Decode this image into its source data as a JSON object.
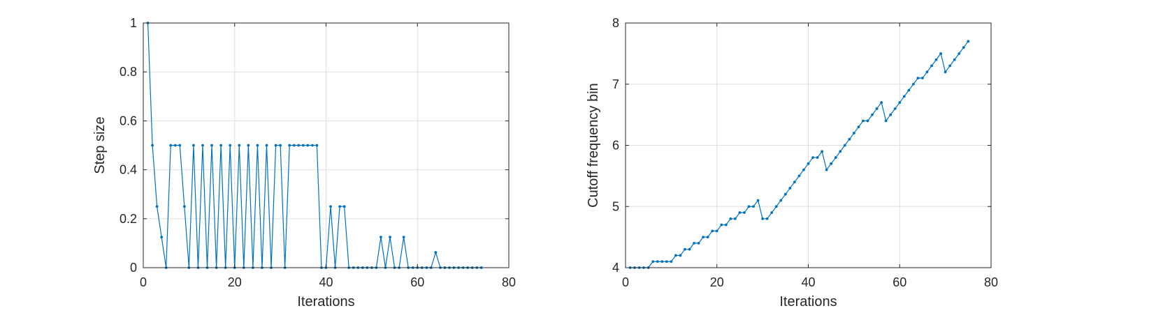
{
  "chart_data": [
    {
      "type": "line",
      "title": "",
      "xlabel": "Iterations",
      "ylabel": "Step size",
      "xlim": [
        0,
        80
      ],
      "ylim": [
        0,
        1
      ],
      "xticks": [
        0,
        20,
        40,
        60,
        80
      ],
      "yticks": [
        0,
        0.2,
        0.4,
        0.6,
        0.8,
        1
      ],
      "ytick_labels": [
        "0",
        "0.2",
        "0.4",
        "0.6",
        "0.8",
        "1"
      ],
      "grid": true,
      "color": "#0072BD",
      "x": [
        1,
        2,
        3,
        4,
        5,
        6,
        7,
        8,
        9,
        10,
        11,
        12,
        13,
        14,
        15,
        16,
        17,
        18,
        19,
        20,
        21,
        22,
        23,
        24,
        25,
        26,
        27,
        28,
        29,
        30,
        31,
        32,
        33,
        34,
        35,
        36,
        37,
        38,
        39,
        40,
        41,
        42,
        43,
        44,
        45,
        46,
        47,
        48,
        49,
        50,
        51,
        52,
        53,
        54,
        55,
        56,
        57,
        58,
        59,
        60,
        61,
        62,
        63,
        64,
        65,
        66,
        67,
        68,
        69,
        70,
        71,
        72,
        73,
        74
      ],
      "y": [
        1,
        0.5,
        0.25,
        0.125,
        0,
        0.5,
        0.5,
        0.5,
        0.25,
        0,
        0.5,
        0,
        0.5,
        0,
        0.5,
        0,
        0.5,
        0,
        0.5,
        0,
        0.5,
        0,
        0.5,
        0,
        0.5,
        0,
        0.5,
        0,
        0.5,
        0.5,
        0,
        0.5,
        0.5,
        0.5,
        0.5,
        0.5,
        0.5,
        0.5,
        0,
        0,
        0.25,
        0,
        0.25,
        0.25,
        0,
        0,
        0,
        0,
        0,
        0,
        0,
        0.125,
        0,
        0.125,
        0,
        0,
        0.125,
        0,
        0,
        0,
        0,
        0,
        0,
        0.0625,
        0,
        0,
        0,
        0,
        0,
        0,
        0,
        0,
        0,
        0
      ]
    },
    {
      "type": "line",
      "title": "",
      "xlabel": "Iterations",
      "ylabel": "Cutoff frequency bin",
      "xlim": [
        0,
        80
      ],
      "ylim": [
        4,
        8
      ],
      "xticks": [
        0,
        20,
        40,
        60,
        80
      ],
      "yticks": [
        4,
        5,
        6,
        7,
        8
      ],
      "ytick_labels": [
        "4",
        "5",
        "6",
        "7",
        "8"
      ],
      "grid": true,
      "color": "#0072BD",
      "x": [
        1,
        2,
        3,
        4,
        5,
        6,
        7,
        8,
        9,
        10,
        11,
        12,
        13,
        14,
        15,
        16,
        17,
        18,
        19,
        20,
        21,
        22,
        23,
        24,
        25,
        26,
        27,
        28,
        29,
        30,
        31,
        32,
        33,
        34,
        35,
        36,
        37,
        38,
        39,
        40,
        41,
        42,
        43,
        44,
        45,
        46,
        47,
        48,
        49,
        50,
        51,
        52,
        53,
        54,
        55,
        56,
        57,
        58,
        59,
        60,
        61,
        62,
        63,
        64,
        65,
        66,
        67,
        68,
        69,
        70,
        71,
        72,
        73,
        74,
        75
      ],
      "y": [
        4,
        4,
        4,
        4,
        4,
        4.1,
        4.1,
        4.1,
        4.1,
        4.1,
        4.2,
        4.2,
        4.3,
        4.3,
        4.4,
        4.4,
        4.5,
        4.5,
        4.6,
        4.6,
        4.7,
        4.7,
        4.8,
        4.8,
        4.9,
        4.9,
        5,
        5,
        5.1,
        4.8,
        4.8,
        4.9,
        5,
        5.1,
        5.2,
        5.3,
        5.4,
        5.5,
        5.6,
        5.7,
        5.8,
        5.8,
        5.9,
        5.6,
        5.7,
        5.8,
        5.9,
        6,
        6.1,
        6.2,
        6.3,
        6.4,
        6.4,
        6.5,
        6.6,
        6.7,
        6.4,
        6.5,
        6.6,
        6.7,
        6.8,
        6.9,
        7,
        7.1,
        7.1,
        7.2,
        7.3,
        7.4,
        7.5,
        7.2,
        7.3,
        7.4,
        7.5,
        7.6,
        7.7
      ]
    }
  ]
}
